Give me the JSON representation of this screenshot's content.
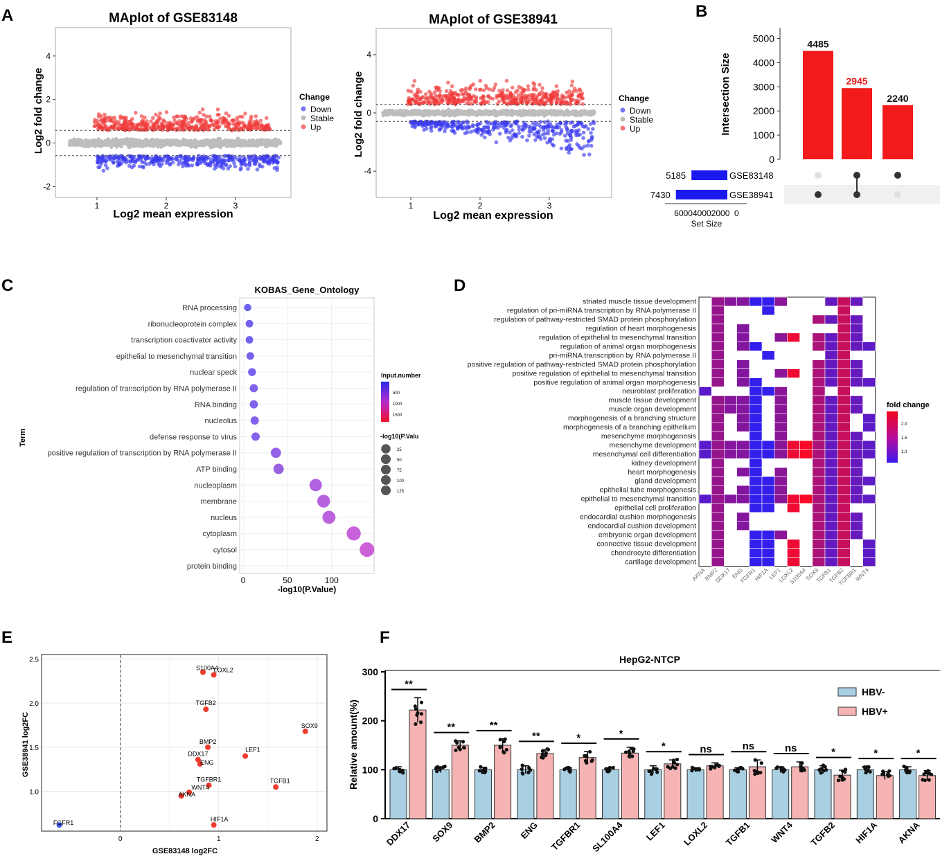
{
  "panel_labels": [
    "A",
    "B",
    "C",
    "D",
    "E",
    "F"
  ],
  "chart_data": [
    {
      "id": "A1",
      "type": "scatter",
      "title": "MAplot of GSE83148",
      "xlabel": "Log2 mean expression",
      "ylabel": "Log2 fold change",
      "x_ticks": [
        1,
        2,
        3
      ],
      "y_ticks": [
        -2,
        0,
        2,
        4
      ],
      "xlim": [
        0.4,
        3.8
      ],
      "ylim": [
        -2.5,
        5.3
      ],
      "thresholds": [
        0.58,
        -0.58
      ],
      "legend": {
        "title": "Change",
        "items": [
          {
            "label": "Down",
            "color": "#3b3bf0"
          },
          {
            "label": "Stable",
            "color": "#bdbdbd"
          },
          {
            "label": "Up",
            "color": "#f03b3b"
          }
        ]
      }
    },
    {
      "id": "A2",
      "type": "scatter",
      "title": "MAplot of GSE38941",
      "xlabel": "Log2 mean expression",
      "ylabel": "Log2 fold change",
      "x_ticks": [
        1,
        2,
        3
      ],
      "y_ticks": [
        -4,
        0,
        4
      ],
      "xlim": [
        0.5,
        3.9
      ],
      "ylim": [
        -5.8,
        5.8
      ],
      "thresholds": [
        0.58,
        -0.58
      ],
      "legend": {
        "title": "Change",
        "items": [
          {
            "label": "Down",
            "color": "#3b3bf0"
          },
          {
            "label": "Stable",
            "color": "#bdbdbd"
          },
          {
            "label": "Up",
            "color": "#f03b3b"
          }
        ]
      }
    },
    {
      "id": "B",
      "type": "upset",
      "ylabel": "Intersection Size",
      "y_ticks": [
        0,
        1000,
        2000,
        3000,
        4000,
        5000
      ],
      "ylim": [
        0,
        5300
      ],
      "intersections": [
        {
          "value": 4485,
          "label": "4485",
          "members": [
            false,
            true
          ],
          "label_color": "#111111"
        },
        {
          "value": 2945,
          "label": "2945",
          "members": [
            true,
            true
          ],
          "label_color": "#e81c1c"
        },
        {
          "value": 2240,
          "label": "2240",
          "members": [
            true,
            false
          ],
          "label_color": "#111111"
        }
      ],
      "sets": [
        {
          "name": "GSE83148",
          "size": 5185,
          "label": "5185"
        },
        {
          "name": "GSE38941",
          "size": 7430,
          "label": "7430"
        }
      ],
      "set_axis_ticks": "600040002000  0",
      "set_xlabel": "Set Size"
    },
    {
      "id": "C",
      "type": "scatter",
      "title": "KOBAS_Gene_Ontology",
      "xlabel": "-log10(P.Value)",
      "ylabel": "Term",
      "x_ticks": [
        0,
        50,
        100
      ],
      "xlim": [
        -4,
        148
      ],
      "terms": [
        "RNA processing",
        "ribonucleoprotein complex",
        "transcription coactivator activity",
        "epithelial to mesenchymal transition",
        "nuclear speck",
        "regulation of transcription by RNA polymerase II",
        "RNA binding",
        "nucleolus",
        "defense response to virus",
        "positive regulation of transcription by RNA polymerase II",
        "ATP binding",
        "nucleoplasm",
        "membrane",
        "nucleus",
        "cytoplasm",
        "cytosol",
        "protein binding"
      ],
      "x": [
        5,
        7,
        7,
        8,
        10,
        12,
        12,
        13,
        14,
        37,
        40,
        82,
        91,
        97,
        125,
        140,
        null
      ],
      "input_number": [
        500,
        520,
        520,
        560,
        600,
        640,
        640,
        660,
        680,
        800,
        850,
        1050,
        1100,
        1150,
        1250,
        1300,
        null
      ],
      "legend_color_title": "Input.number",
      "legend_color_ticks": [
        "500",
        "1000",
        "1500"
      ],
      "legend_size_title": "-log10(P.Valu",
      "legend_size_ticks": [
        "25",
        "50",
        "75",
        "100",
        "125"
      ]
    },
    {
      "id": "D",
      "type": "heatmap",
      "rows": [
        "striated muscle tissue development",
        "regulation of pri-miRNA transcription by RNA polymerase II",
        "regulation of pathway-restricted SMAD protein phosphorylation",
        "regulation of heart morphogenesis",
        "regulation of epithelial to mesenchymal transition",
        "regulation of animal organ morphogenesis",
        "pri-miRNA transcription by RNA polymerase II",
        "positive regulation of pathway-restricted SMAD protein phosphorylation",
        "positive regulation of epithelial to mesenchymal transition",
        "positive regulation of animal organ morphogenesis",
        "neuroblast proliferation",
        "muscle tissue development",
        "muscle organ development",
        "morphogenesis of a branching structure",
        "morphogenesis of a branching epithelium",
        "mesenchyme morphogenesis",
        "mesenchyme development",
        "mesenchymal cell differentiation",
        "kidney development",
        "heart morphogenesis",
        "gland development",
        "epithelial tube morphogenesis",
        "epithelial to mesenchymal transition",
        "epithelial cell proliferation",
        "endocardial cushion morphogenesis",
        "endocardial cushion development",
        "embryonic organ development",
        "connective tissue development",
        "chondrocyte differentiation",
        "cartilage development"
      ],
      "columns": [
        "AKNA",
        "BMP2",
        "DDX17",
        "ENG",
        "FGFR1",
        "HIF1A",
        "LEF1",
        "LOXL2",
        "S100A4",
        "SOX9",
        "TGFB1",
        "TGFB2",
        "TGFBR1",
        "WNT4"
      ],
      "col_fold_change": [
        0.95,
        1.5,
        1.35,
        1.33,
        0.62,
        0.62,
        1.4,
        2.3,
        2.4,
        1.68,
        1.05,
        1.93,
        1.07,
        0.99
      ],
      "matrix": [
        [
          0,
          1,
          1,
          1,
          1,
          1,
          1,
          0,
          0,
          0,
          1,
          1,
          1,
          0
        ],
        [
          0,
          1,
          0,
          0,
          0,
          1,
          0,
          0,
          0,
          0,
          0,
          1,
          0,
          0
        ],
        [
          0,
          1,
          0,
          0,
          0,
          0,
          0,
          0,
          0,
          1,
          1,
          1,
          1,
          0
        ],
        [
          0,
          1,
          0,
          1,
          0,
          0,
          0,
          0,
          0,
          0,
          0,
          1,
          1,
          0
        ],
        [
          0,
          1,
          0,
          1,
          0,
          0,
          1,
          1,
          0,
          1,
          1,
          1,
          1,
          0
        ],
        [
          0,
          1,
          0,
          1,
          1,
          0,
          0,
          0,
          0,
          1,
          1,
          1,
          1,
          1
        ],
        [
          0,
          1,
          0,
          0,
          0,
          1,
          0,
          0,
          0,
          0,
          1,
          1,
          0,
          0
        ],
        [
          0,
          1,
          0,
          1,
          0,
          0,
          0,
          0,
          0,
          1,
          1,
          1,
          1,
          0
        ],
        [
          0,
          1,
          0,
          1,
          0,
          0,
          1,
          1,
          0,
          1,
          1,
          1,
          1,
          0
        ],
        [
          0,
          1,
          0,
          1,
          1,
          0,
          0,
          0,
          0,
          1,
          1,
          1,
          1,
          1
        ],
        [
          1,
          0,
          0,
          0,
          1,
          1,
          1,
          0,
          0,
          1,
          0,
          1,
          0,
          0
        ],
        [
          0,
          1,
          1,
          1,
          1,
          0,
          1,
          0,
          0,
          1,
          1,
          1,
          1,
          0
        ],
        [
          0,
          1,
          1,
          1,
          1,
          0,
          1,
          0,
          0,
          1,
          1,
          1,
          1,
          0
        ],
        [
          0,
          1,
          0,
          1,
          1,
          0,
          1,
          0,
          0,
          1,
          1,
          1,
          0,
          1
        ],
        [
          0,
          1,
          0,
          1,
          1,
          0,
          1,
          0,
          0,
          1,
          1,
          1,
          0,
          1
        ],
        [
          0,
          1,
          0,
          0,
          1,
          0,
          1,
          0,
          0,
          1,
          1,
          1,
          1,
          0
        ],
        [
          1,
          1,
          1,
          1,
          1,
          1,
          1,
          1,
          1,
          1,
          1,
          1,
          1,
          1
        ],
        [
          1,
          1,
          1,
          1,
          1,
          1,
          1,
          1,
          1,
          1,
          1,
          1,
          1,
          1
        ],
        [
          0,
          1,
          0,
          0,
          1,
          0,
          0,
          0,
          0,
          1,
          1,
          1,
          1,
          0
        ],
        [
          0,
          1,
          0,
          1,
          1,
          0,
          1,
          0,
          0,
          1,
          1,
          1,
          1,
          0
        ],
        [
          0,
          1,
          0,
          0,
          1,
          1,
          1,
          0,
          0,
          1,
          1,
          1,
          1,
          1
        ],
        [
          0,
          1,
          0,
          1,
          1,
          1,
          1,
          0,
          0,
          1,
          1,
          1,
          1,
          0
        ],
        [
          1,
          1,
          1,
          1,
          1,
          1,
          1,
          1,
          1,
          1,
          1,
          1,
          1,
          1
        ],
        [
          0,
          1,
          0,
          0,
          1,
          1,
          0,
          1,
          0,
          1,
          1,
          1,
          0,
          0
        ],
        [
          0,
          1,
          0,
          1,
          0,
          0,
          0,
          0,
          0,
          1,
          1,
          1,
          1,
          0
        ],
        [
          0,
          1,
          0,
          1,
          0,
          0,
          0,
          0,
          0,
          1,
          1,
          1,
          1,
          0
        ],
        [
          0,
          1,
          0,
          0,
          1,
          1,
          1,
          0,
          0,
          1,
          1,
          1,
          1,
          0
        ],
        [
          0,
          1,
          0,
          0,
          1,
          1,
          0,
          1,
          0,
          1,
          1,
          1,
          0,
          1
        ],
        [
          0,
          1,
          0,
          0,
          1,
          1,
          0,
          1,
          0,
          1,
          1,
          1,
          0,
          1
        ],
        [
          0,
          1,
          0,
          0,
          1,
          1,
          0,
          1,
          0,
          1,
          1,
          1,
          0,
          1
        ]
      ],
      "legend_title": "fold change",
      "legend_ticks": [
        "2.0",
        "1.5",
        "1.0"
      ],
      "legend_range": [
        0.6,
        2.4
      ]
    },
    {
      "id": "E",
      "type": "scatter",
      "xlabel": "GSE83148 log2FC",
      "ylabel": "GSE38941 log2FC",
      "x_ticks": [
        0,
        1,
        2
      ],
      "y_ticks": [
        1.0,
        1.5,
        2.0,
        2.5
      ],
      "xlim": [
        -0.8,
        2.1
      ],
      "ylim": [
        0.55,
        2.55
      ],
      "points": [
        {
          "label": "S100A4",
          "x": 0.84,
          "y": 2.35
        },
        {
          "label": "LOXL2",
          "x": 0.95,
          "y": 2.32
        },
        {
          "label": "TGFB2",
          "x": 0.87,
          "y": 1.93
        },
        {
          "label": "SOX9",
          "x": 1.88,
          "y": 1.68
        },
        {
          "label": "BMP2",
          "x": 0.89,
          "y": 1.5
        },
        {
          "label": "LEF1",
          "x": 1.27,
          "y": 1.4
        },
        {
          "label": "DDX17",
          "x": 0.79,
          "y": 1.36
        },
        {
          "label": "ENG",
          "x": 0.81,
          "y": 1.31
        },
        {
          "label": "TGFBR1",
          "x": 0.9,
          "y": 1.07
        },
        {
          "label": "TGFB1",
          "x": 1.58,
          "y": 1.05
        },
        {
          "label": "WNT4",
          "x": 0.7,
          "y": 0.99
        },
        {
          "label": "AKNA",
          "x": 0.62,
          "y": 0.95
        },
        {
          "label": "HIF1A",
          "x": 0.95,
          "y": 0.62
        },
        {
          "label": "FGFR1",
          "x": -0.62,
          "y": 0.62
        }
      ]
    },
    {
      "id": "F",
      "type": "bar",
      "title": "HepG2-NTCP",
      "ylabel": "Relative amount(%)",
      "y_ticks": [
        0,
        100,
        200,
        300
      ],
      "ylim": [
        0,
        300
      ],
      "categories": [
        "DDX17",
        "SOX9",
        "BMP2",
        "ENG",
        "TGFBR1",
        "SL100A4",
        "LEF1",
        "LOXL2",
        "TGFB1",
        "WNT4",
        "TGFB2",
        "HIF1A",
        "AKNA"
      ],
      "series": [
        {
          "name": "HBV-",
          "color": "#a9cfe3",
          "values": [
            100,
            100,
            100,
            100,
            100,
            100,
            100,
            100,
            100,
            100,
            100,
            100,
            100
          ],
          "errors": [
            6,
            6,
            5,
            8,
            5,
            4,
            8,
            4,
            4,
            6,
            8,
            6,
            6
          ]
        },
        {
          "name": "HBV+",
          "color": "#f6b3b3",
          "values": [
            222,
            150,
            150,
            133,
            125,
            134,
            112,
            108,
            106,
            106,
            89,
            88,
            88
          ],
          "errors": [
            25,
            9,
            13,
            8,
            12,
            12,
            8,
            6,
            14,
            10,
            10,
            8,
            10
          ]
        }
      ],
      "significance": [
        "**",
        "**",
        "**",
        "**",
        "*",
        "*",
        "*",
        "ns",
        "ns",
        "ns",
        "*",
        "*",
        "*"
      ]
    }
  ]
}
